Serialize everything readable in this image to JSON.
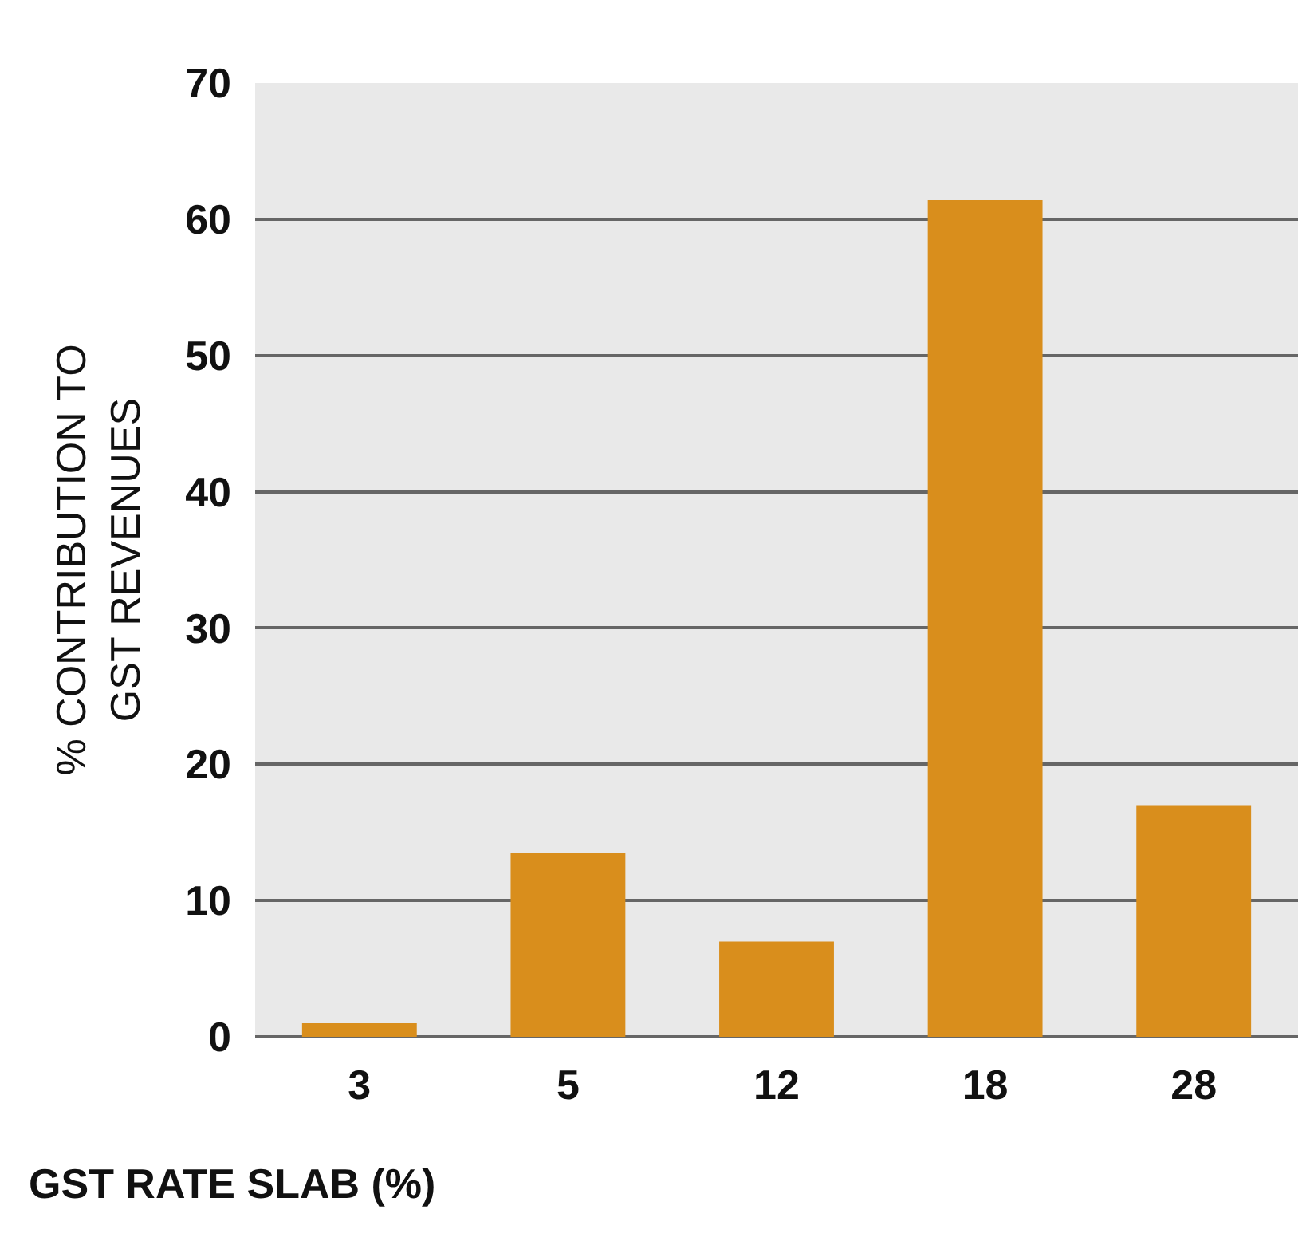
{
  "chart_data": {
    "type": "bar",
    "xlabel": "GST RATE SLAB (%)",
    "ylabel": "% CONTRIBUTION TO\nGST REVENUES",
    "categories": [
      "3",
      "5",
      "12",
      "18",
      "28"
    ],
    "values": [
      1.0,
      13.5,
      7.0,
      61.4,
      17.0
    ],
    "color": "#d98e1c",
    "ylim": [
      0,
      70
    ],
    "yticks": [
      0,
      10,
      20,
      30,
      40,
      50,
      60,
      70
    ],
    "grid": "y"
  }
}
